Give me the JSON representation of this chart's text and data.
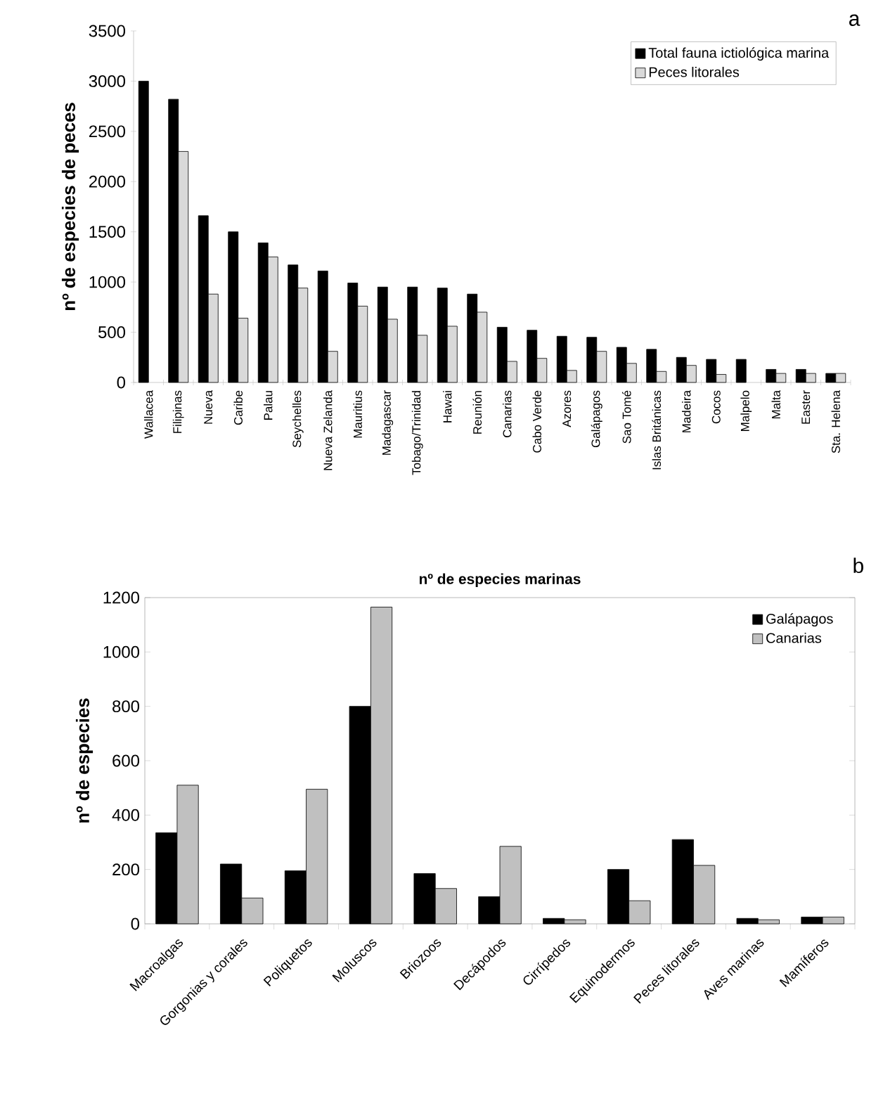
{
  "chart_data": [
    {
      "type": "bar",
      "ylabel": "nº de especies de peces",
      "annotations": [
        "a"
      ],
      "categories": [
        "Wallacea",
        "Filipinas",
        "Nueva",
        "Caribe",
        "Palau",
        "Seychelles",
        "Nueva Zelanda",
        "Mauritius",
        "Madagascar",
        "Tobago/Trinidad",
        "Hawai",
        "Reunión",
        "Canarias",
        "Cabo Verde",
        "Azores",
        "Galápagos",
        "Sao Tomé",
        "Islas Británicas",
        "Madeira",
        "Cocos",
        "Malpelo",
        "Malta",
        "Easter",
        "Sta. Helena"
      ],
      "series": [
        {
          "name": "Total fauna ictiológica marina",
          "color": "#000000",
          "values": [
            3000,
            2820,
            1660,
            1500,
            1390,
            1170,
            1110,
            990,
            950,
            950,
            940,
            880,
            550,
            520,
            460,
            450,
            350,
            330,
            250,
            230,
            230,
            130,
            130,
            90
          ]
        },
        {
          "name": "Peces litorales",
          "color": "#d9d9d9",
          "values": [
            null,
            2300,
            880,
            640,
            1250,
            940,
            310,
            760,
            630,
            470,
            560,
            700,
            210,
            240,
            120,
            310,
            190,
            110,
            170,
            80,
            null,
            90,
            90,
            90
          ]
        }
      ],
      "ylim": [
        0,
        3500
      ],
      "yticks": [
        0,
        500,
        1000,
        1500,
        2000,
        2500,
        3000,
        3500
      ],
      "legend": "top right"
    },
    {
      "type": "bar",
      "title": "nº de especies marinas",
      "ylabel": "nº de especies",
      "annotations": [
        "b"
      ],
      "categories": [
        "Macroalgas",
        "Gorgonias y corales",
        "Poliquetos",
        "Moluscos",
        "Briozoos",
        "Decápodos",
        "Cirrípedos",
        "Equinodermos",
        "Peces litorales",
        "Aves marinas",
        "Mamíferos"
      ],
      "series": [
        {
          "name": "Galápagos",
          "color": "#000000",
          "values": [
            335,
            220,
            195,
            800,
            185,
            100,
            20,
            200,
            310,
            20,
            25
          ]
        },
        {
          "name": "Canarias",
          "color": "#c0c0c0",
          "values": [
            510,
            95,
            495,
            1165,
            130,
            285,
            15,
            85,
            215,
            15,
            25
          ]
        }
      ],
      "ylim": [
        0,
        1200
      ],
      "yticks": [
        0,
        200,
        400,
        600,
        800,
        1000,
        1200
      ],
      "legend": "top right"
    }
  ]
}
